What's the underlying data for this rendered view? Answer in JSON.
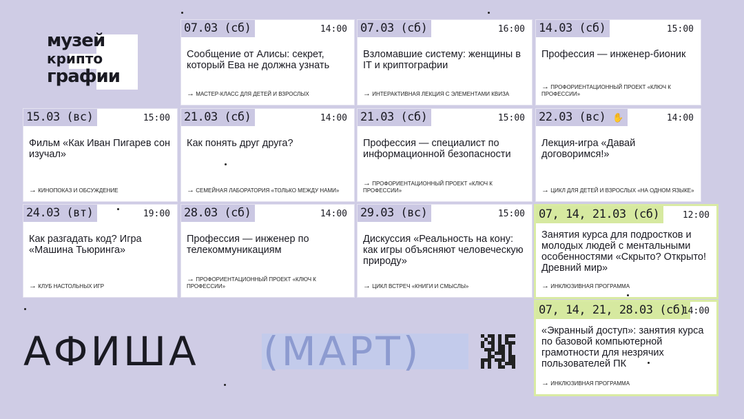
{
  "logo": {
    "line1": "музей",
    "line2": "крипто",
    "line3": "графии"
  },
  "heading": {
    "title": "АФИША",
    "month": "(МАРТ)"
  },
  "colors": {
    "background": "#cfcce5",
    "date_label": "#cbc8e3",
    "inclusive_accent": "#d9eba3",
    "month_text": "#8d9bd0"
  },
  "events": [
    {
      "date": "07.03 (сб)",
      "time": "14:00",
      "title": "Сообщение от Алисы: секрет, который Ева не должна узнать",
      "tag": "мастер-класс для детей и взрослых"
    },
    {
      "date": "07.03 (сб)",
      "time": "16:00",
      "title": "Взломавшие систему: женщины в IT и криптографии",
      "tag": "интерактивная лекция с элементами квиза"
    },
    {
      "date": "14.03 (сб)",
      "time": "15:00",
      "title": "Профессия — инженер-бионик",
      "tag": "профориентационный проект «Ключ к профессии»"
    },
    {
      "date": "15.03 (вс)",
      "time": "15:00",
      "title": "Фильм «Как Иван Пигарев сон изучал»",
      "tag": "кинопоказ и обсуждение"
    },
    {
      "date": "21.03 (сб)",
      "time": "14:00",
      "title": "Как понять друг друга?",
      "tag": "семейная лаборатория «Только между нами»"
    },
    {
      "date": "21.03 (сб)",
      "time": "15:00",
      "title": "Профессия — специалист по информационной безопасности",
      "tag": "профориентационный проект «Ключ к профессии»"
    },
    {
      "date": "22.03 (вс)",
      "time": "14:00",
      "title": "Лекция-игра «Давай договоримся!»",
      "tag": "цикл для детей и взрослых «На одном языке»",
      "icon": "sign-language-hand-icon"
    },
    {
      "date": "24.03 (вт)",
      "time": "19:00",
      "title": "Как разгадать код? Игра «Машина Тьюринга»",
      "tag": "клуб настольных игр"
    },
    {
      "date": "28.03 (сб)",
      "time": "14:00",
      "title": "Профессия — инженер по телекоммуникациям",
      "tag": "профориентационный проект «Ключ к профессии»"
    },
    {
      "date": "29.03 (вс)",
      "time": "15:00",
      "title": "Дискуссия «Реальность на кону: как игры объясняют человеческую природу»",
      "tag": "цикл встреч «Книги и смыслы»"
    },
    {
      "date": "07, 14, 21.03 (сб)",
      "time": "12:00",
      "title": "Занятия курса для подростков и молодых людей с ментальными особенностями «Скрыто? Открыто! Древний мир»",
      "tag": "инклюзивная программа"
    },
    {
      "date": "07, 14, 21, 28.03 (сб)",
      "time": "14:00",
      "title": "«Экранный доступ»: занятия курса по базовой компьютерной грамотности для незрячих пользователей ПК",
      "tag": "инклюзивная программа"
    }
  ]
}
